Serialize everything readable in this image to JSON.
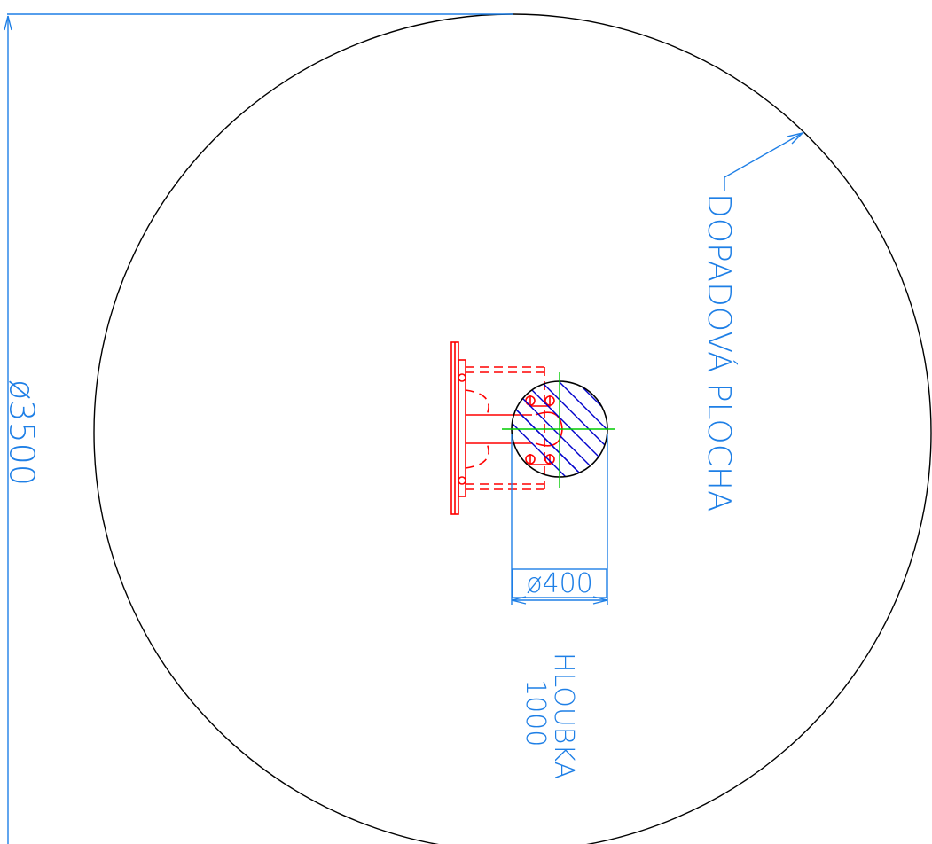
{
  "drawing": {
    "dimension_outer": "ø3500",
    "dimension_inner": "ø400",
    "area_label": "DOPADOVÁ PLOCHA",
    "depth_label": "HLOUBKA",
    "depth_value": "1000"
  },
  "colors": {
    "outline": "#000000",
    "dimension": "#1e7fe6",
    "equipment": "#ff0000",
    "centerline": "#00cc00",
    "hatch": "#0000cc"
  }
}
